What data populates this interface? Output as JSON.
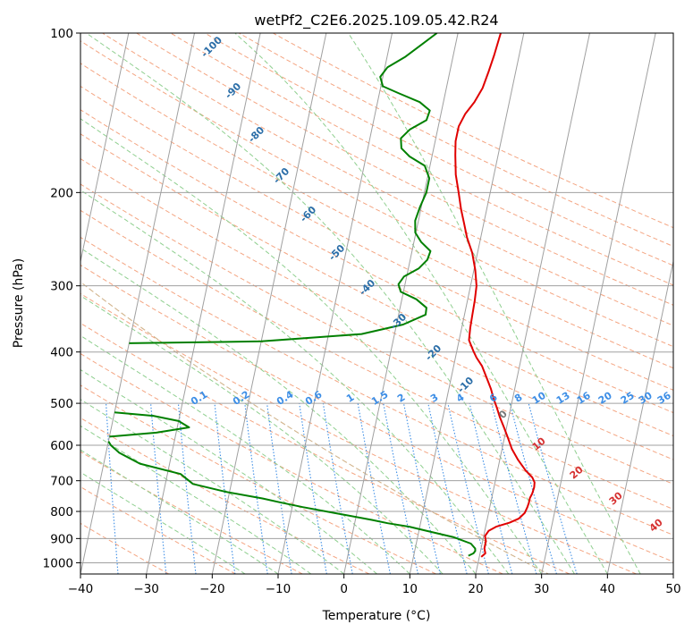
{
  "colors": {
    "temperature": "#e00000",
    "dewpoint": "#008000",
    "isotherm": "#a0a0a0",
    "dry_adiabat": "#f4a582",
    "moist_adiabat": "#8fcf8f",
    "mixing_ratio": "#3d8ee6",
    "dry_label": "#2b6ea8",
    "moist_label": "#d63030",
    "lcl_arc": "#d2b48c"
  },
  "chart_data": {
    "type": "line",
    "title": "wetPf2_C2E6.2025.109.05.42.R24",
    "xlabel": "Temperature (°C)",
    "ylabel": "Pressure (hPa)",
    "xlim": [
      -40,
      50
    ],
    "ylim": [
      1050,
      100
    ],
    "y_scale": "log",
    "grid": true,
    "x_ticks": [
      "−40",
      "−30",
      "−20",
      "−10",
      "0",
      "10",
      "20",
      "30",
      "40",
      "50"
    ],
    "y_ticks": [
      "100",
      "200",
      "300",
      "400",
      "500",
      "600",
      "700",
      "800",
      "900",
      "1000"
    ],
    "series": [
      {
        "points": [
          [
            20.3,
            975
          ],
          [
            20.8,
            960
          ],
          [
            20.5,
            940
          ],
          [
            20.5,
            910
          ],
          [
            20.2,
            890
          ],
          [
            20.6,
            870
          ],
          [
            21.6,
            855
          ],
          [
            23.5,
            840
          ],
          [
            24.8,
            825
          ],
          [
            25.5,
            805
          ],
          [
            25.7,
            785
          ],
          [
            25.8,
            770
          ],
          [
            25.8,
            755
          ],
          [
            26.0,
            740
          ],
          [
            26.1,
            720
          ],
          [
            26.0,
            705
          ],
          [
            25.5,
            690
          ],
          [
            24.3,
            670
          ],
          [
            22.8,
            640
          ],
          [
            21.5,
            610
          ],
          [
            20.5,
            580
          ],
          [
            19.6,
            555
          ],
          [
            18.6,
            530
          ],
          [
            17.9,
            510
          ],
          [
            17.1,
            490
          ],
          [
            16.4,
            470
          ],
          [
            15.5,
            450
          ],
          [
            14.3,
            425
          ],
          [
            13.2,
            410
          ],
          [
            12.5,
            398
          ],
          [
            11.5,
            380
          ],
          [
            11.3,
            360
          ],
          [
            11.2,
            340
          ],
          [
            11.1,
            320
          ],
          [
            10.9,
            300
          ],
          [
            10.2,
            280
          ],
          [
            9.2,
            260
          ],
          [
            7.9,
            243
          ],
          [
            7.1,
            230
          ],
          [
            6.1,
            215
          ],
          [
            5.2,
            200
          ],
          [
            4.2,
            185
          ],
          [
            3.5,
            170
          ],
          [
            3.1,
            160
          ],
          [
            3.1,
            150
          ],
          [
            3.7,
            142
          ],
          [
            4.7,
            135
          ],
          [
            5.5,
            127
          ],
          [
            5.9,
            118
          ],
          [
            6.2,
            110
          ],
          [
            6.4,
            103
          ],
          [
            6.5,
            100
          ]
        ]
      },
      {
        "points": [
          [
            18.3,
            970
          ],
          [
            19.0,
            960
          ],
          [
            19.2,
            950
          ],
          [
            19.1,
            940
          ],
          [
            18.3,
            920
          ],
          [
            15.5,
            895
          ],
          [
            12.0,
            875
          ],
          [
            8.4,
            855
          ],
          [
            5.0,
            842
          ],
          [
            2.5,
            830
          ],
          [
            -3.5,
            805
          ],
          [
            -8.4,
            785
          ],
          [
            -11.8,
            770
          ],
          [
            -14.8,
            756
          ],
          [
            -20.5,
            735
          ],
          [
            -25.8,
            710
          ],
          [
            -28.0,
            680
          ],
          [
            -34.5,
            650
          ],
          [
            -38.0,
            620
          ],
          [
            -39.5,
            600
          ],
          [
            -40,
            590
          ]
        ]
      },
      {
        "points": [
          [
            -40,
            520
          ],
          [
            -34.0,
            528
          ],
          [
            -30.0,
            540
          ],
          [
            -28.2,
            555
          ],
          [
            -33.0,
            568
          ],
          [
            -40,
            578
          ]
        ]
      },
      {
        "points": [
          [
            -40,
            385
          ],
          [
            -20.0,
            382
          ],
          [
            -5.0,
            370
          ],
          [
            1.0,
            355
          ],
          [
            4.1,
            340
          ],
          [
            4.0,
            330
          ],
          [
            2.2,
            318
          ],
          [
            -0.4,
            308
          ],
          [
            -1.0,
            298
          ],
          [
            -0.4,
            288
          ],
          [
            1.6,
            278
          ],
          [
            2.6,
            268
          ],
          [
            2.8,
            258
          ],
          [
            1.1,
            248
          ],
          [
            -0.1,
            238
          ],
          [
            -0.5,
            226
          ],
          [
            -0.2,
            213
          ],
          [
            0.3,
            200
          ],
          [
            0.3,
            188
          ],
          [
            -0.8,
            178
          ],
          [
            -3.4,
            171
          ],
          [
            -4.9,
            165
          ],
          [
            -5.3,
            158
          ],
          [
            -4.2,
            152
          ],
          [
            -2.0,
            146
          ],
          [
            -1.8,
            140
          ],
          [
            -3.6,
            135
          ],
          [
            -7.0,
            130
          ],
          [
            -9.7,
            126
          ],
          [
            -10.4,
            121
          ],
          [
            -9.6,
            116
          ],
          [
            -7.3,
            111
          ],
          [
            -5.1,
            105
          ],
          [
            -3.2,
            100
          ]
        ]
      }
    ],
    "mixing_ratio_labels": [
      "0.1",
      "0.2",
      "0.4",
      "0.6",
      "1",
      "1.5",
      "2",
      "3",
      "4",
      "6",
      "8",
      "10",
      "13",
      "16",
      "20",
      "25",
      "30",
      "36"
    ],
    "dry_adiabat_labels": [
      "-100",
      "-90",
      "-80",
      "-70",
      "-60",
      "-50",
      "-40",
      "-30",
      "-20",
      "-10",
      "0"
    ],
    "moist_adiabat_labels": [
      "10",
      "20",
      "30",
      "40"
    ]
  }
}
